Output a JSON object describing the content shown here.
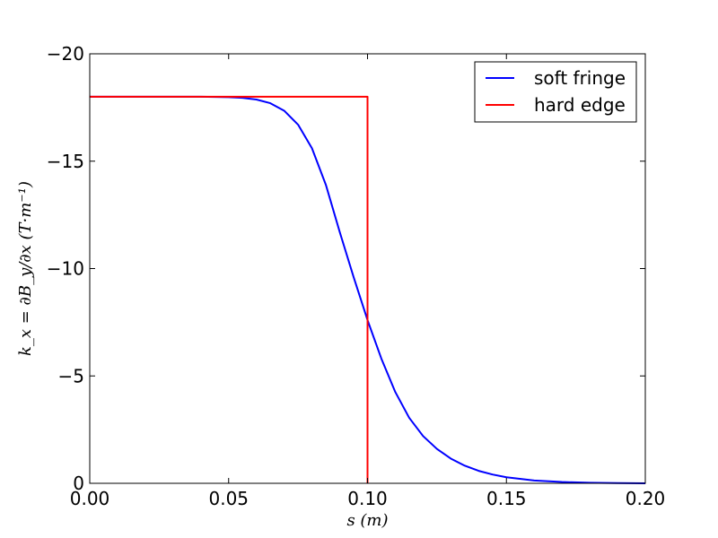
{
  "chart_data": {
    "type": "line",
    "title": "",
    "xlabel": "s  (m)",
    "ylabel": "k_x = ∂B_y/∂x  (T·m⁻¹)",
    "xlim": [
      0.0,
      0.2
    ],
    "ylim": [
      0,
      -20
    ],
    "y_axis_inverted": true,
    "grid": false,
    "legend_position": "top-right",
    "x_ticks": [
      "0.00",
      "0.05",
      "0.10",
      "0.15",
      "0.20"
    ],
    "x_tick_values": [
      0.0,
      0.05,
      0.1,
      0.15,
      0.2
    ],
    "y_ticks": [
      "0",
      "−5",
      "−10",
      "−15",
      "−20"
    ],
    "y_tick_values": [
      0,
      -5,
      -10,
      -15,
      -20
    ],
    "series": [
      {
        "name": "soft fringe",
        "color": "#0000ff",
        "x": [
          0.0,
          0.02,
          0.04,
          0.05,
          0.055,
          0.06,
          0.065,
          0.07,
          0.075,
          0.08,
          0.085,
          0.09,
          0.095,
          0.1,
          0.105,
          0.11,
          0.115,
          0.12,
          0.125,
          0.13,
          0.135,
          0.14,
          0.145,
          0.15,
          0.16,
          0.17,
          0.18,
          0.19,
          0.2
        ],
        "y": [
          -18.0,
          -18.0,
          -18.0,
          -17.98,
          -17.95,
          -17.87,
          -17.7,
          -17.35,
          -16.7,
          -15.6,
          -13.9,
          -11.7,
          -9.6,
          -7.6,
          -5.8,
          -4.25,
          -3.05,
          -2.2,
          -1.6,
          -1.15,
          -0.82,
          -0.58,
          -0.41,
          -0.28,
          -0.13,
          -0.06,
          -0.025,
          -0.008,
          0.0
        ]
      },
      {
        "name": "hard edge",
        "color": "#ff0000",
        "x": [
          0.0,
          0.1,
          0.1
        ],
        "y": [
          -18.0,
          -18.0,
          0.0
        ]
      }
    ]
  }
}
